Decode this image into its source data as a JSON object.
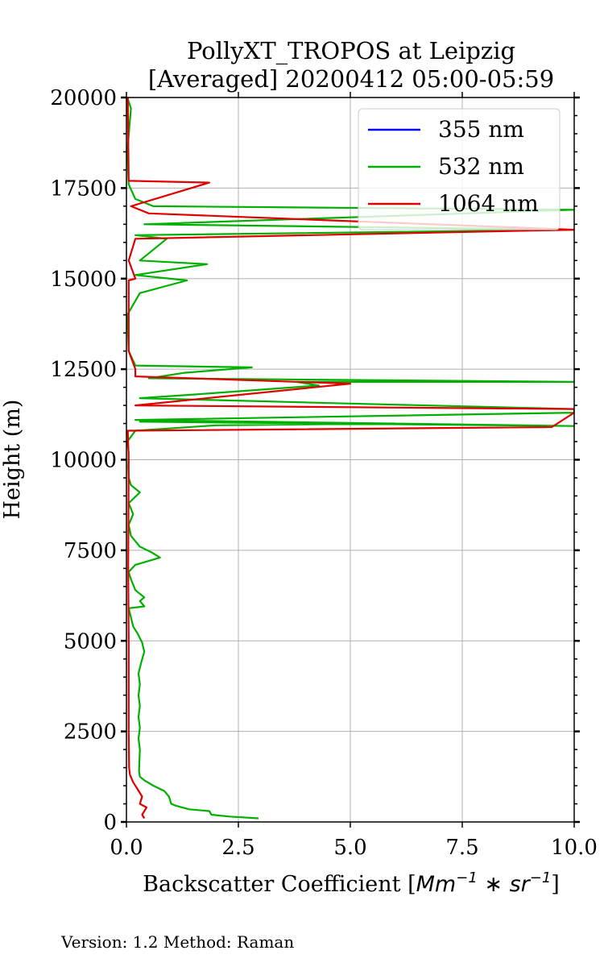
{
  "chart_data": {
    "type": "line",
    "title": "PollyXT_TROPOS at Leipzig",
    "subtitle": "[Averaged] 20200412 05:00-05:59",
    "xlabel": "Backscatter Coefficient [",
    "xlabel_math": "Mm",
    "xlabel_math2": "−1",
    "xlabel_math3": " ∗ sr",
    "xlabel_math4": "−1",
    "xlabel_end": "]",
    "ylabel": "Height (m)",
    "xlim": [
      0,
      10
    ],
    "ylim": [
      0,
      20000
    ],
    "xticks": [
      0,
      2.5,
      5,
      7.5,
      10
    ],
    "xtick_labels": [
      "0.0",
      "2.5",
      "5.0",
      "7.5",
      "10.0"
    ],
    "yticks": [
      0,
      2500,
      5000,
      7500,
      10000,
      12500,
      15000,
      17500,
      20000
    ],
    "ytick_labels": [
      "0",
      "2500",
      "5000",
      "7500",
      "10000",
      "12500",
      "15000",
      "17500",
      "20000"
    ],
    "grid": true,
    "legend_position": "top-right",
    "series": [
      {
        "name": "355 nm",
        "color": "#0000ff",
        "points": []
      },
      {
        "name": "532 nm",
        "color": "#00b000",
        "points": [
          [
            2.95,
            100
          ],
          [
            2.3,
            150
          ],
          [
            1.9,
            200
          ],
          [
            1.85,
            300
          ],
          [
            1.4,
            350
          ],
          [
            1.1,
            450
          ],
          [
            1.0,
            500
          ],
          [
            0.95,
            700
          ],
          [
            0.85,
            850
          ],
          [
            0.6,
            1000
          ],
          [
            0.4,
            1150
          ],
          [
            0.3,
            1250
          ],
          [
            0.28,
            1400
          ],
          [
            0.3,
            2000
          ],
          [
            0.27,
            2300
          ],
          [
            0.3,
            2600
          ],
          [
            0.27,
            2900
          ],
          [
            0.3,
            3200
          ],
          [
            0.27,
            3500
          ],
          [
            0.3,
            3800
          ],
          [
            0.27,
            4100
          ],
          [
            0.33,
            4400
          ],
          [
            0.4,
            4700
          ],
          [
            0.35,
            4950
          ],
          [
            0.25,
            5200
          ],
          [
            0.15,
            5400
          ],
          [
            0.1,
            5650
          ],
          [
            0.05,
            5900
          ],
          [
            0.4,
            5950
          ],
          [
            0.3,
            6100
          ],
          [
            0.4,
            6200
          ],
          [
            0.2,
            6400
          ],
          [
            0.1,
            6700
          ],
          [
            0.05,
            6900
          ],
          [
            0.2,
            7100
          ],
          [
            0.75,
            7300
          ],
          [
            0.55,
            7450
          ],
          [
            0.3,
            7600
          ],
          [
            0.1,
            7900
          ],
          [
            0.05,
            8200
          ],
          [
            0.15,
            8500
          ],
          [
            0.05,
            8800
          ],
          [
            0.3,
            9100
          ],
          [
            0.1,
            9300
          ],
          [
            0.05,
            9500
          ],
          [
            0.04,
            9800
          ],
          [
            0.05,
            10200
          ],
          [
            0.02,
            10500
          ],
          [
            0.2,
            10800
          ],
          [
            2.0,
            10950
          ],
          [
            6.0,
            11000
          ],
          [
            0.3,
            11050
          ],
          [
            10.0,
            10930
          ],
          [
            0.2,
            11100
          ],
          [
            10.0,
            11300
          ],
          [
            10.0,
            11400
          ],
          [
            5.0,
            11550
          ],
          [
            0.3,
            11700
          ],
          [
            1.5,
            11800
          ],
          [
            4.3,
            12050
          ],
          [
            3.8,
            12150
          ],
          [
            10.0,
            12150
          ],
          [
            0.5,
            12250
          ],
          [
            1.3,
            12400
          ],
          [
            2.8,
            12550
          ],
          [
            0.2,
            12600
          ],
          [
            0.05,
            13000
          ],
          [
            0.02,
            14000
          ],
          [
            0.3,
            14600
          ],
          [
            1.35,
            14950
          ],
          [
            0.2,
            15100
          ],
          [
            1.8,
            15400
          ],
          [
            0.3,
            15500
          ],
          [
            0.9,
            16100
          ],
          [
            0.2,
            16200
          ],
          [
            10.0,
            16350
          ],
          [
            0.4,
            16500
          ],
          [
            10.0,
            16900
          ],
          [
            0.6,
            17000
          ],
          [
            0.2,
            17200
          ],
          [
            0.05,
            17600
          ],
          [
            0.02,
            18500
          ],
          [
            0.1,
            19700
          ],
          [
            0.02,
            20000
          ]
        ]
      },
      {
        "name": "1064 nm",
        "color": "#e00000",
        "points": [
          [
            0.4,
            100
          ],
          [
            0.35,
            200
          ],
          [
            0.45,
            400
          ],
          [
            0.3,
            500
          ],
          [
            0.35,
            700
          ],
          [
            0.25,
            900
          ],
          [
            0.15,
            1100
          ],
          [
            0.08,
            1300
          ],
          [
            0.06,
            1500
          ],
          [
            0.05,
            2500
          ],
          [
            0.05,
            5000
          ],
          [
            0.04,
            7000
          ],
          [
            0.05,
            10000
          ],
          [
            0.03,
            10800
          ],
          [
            9.5,
            10900
          ],
          [
            10.0,
            11300
          ],
          [
            10.0,
            11400
          ],
          [
            0.2,
            11500
          ],
          [
            5.0,
            12100
          ],
          [
            0.2,
            12300
          ],
          [
            0.2,
            12500
          ],
          [
            0.05,
            13000
          ],
          [
            0.05,
            14950
          ],
          [
            0.2,
            15000
          ],
          [
            0.05,
            15500
          ],
          [
            0.2,
            16100
          ],
          [
            10.0,
            16350
          ],
          [
            0.5,
            16800
          ],
          [
            0.1,
            17000
          ],
          [
            1.85,
            17650
          ],
          [
            0.05,
            17700
          ],
          [
            0.03,
            20000
          ]
        ]
      }
    ]
  },
  "footer": {
    "version": "Version: 1.2  Method: Raman"
  }
}
